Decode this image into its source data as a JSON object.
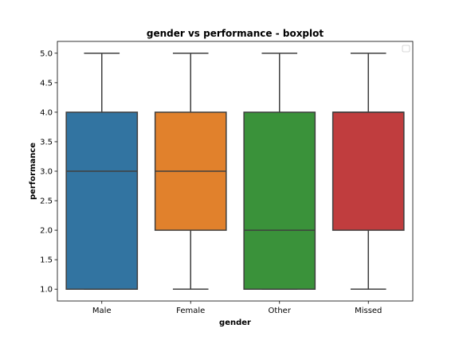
{
  "chart_data": {
    "type": "boxplot",
    "title": "gender vs performance - boxplot",
    "xlabel": "gender",
    "ylabel": "performance",
    "categories": [
      "Male",
      "Female",
      "Other",
      "Missed"
    ],
    "boxes": [
      {
        "category": "Male",
        "whisker_low": 1.0,
        "q1": 1.0,
        "median": 3.0,
        "q3": 4.0,
        "whisker_high": 5.0,
        "color": "#3274a1"
      },
      {
        "category": "Female",
        "whisker_low": 1.0,
        "q1": 2.0,
        "median": 3.0,
        "q3": 4.0,
        "whisker_high": 5.0,
        "color": "#e1812c"
      },
      {
        "category": "Other",
        "whisker_low": 1.0,
        "q1": 1.0,
        "median": 2.0,
        "q3": 4.0,
        "whisker_high": 5.0,
        "color": "#3a923a"
      },
      {
        "category": "Missed",
        "whisker_low": 1.0,
        "q1": 2.0,
        "median": 4.0,
        "q3": 4.0,
        "whisker_high": 5.0,
        "color": "#c03d3e"
      }
    ],
    "ylim": [
      0.8,
      5.2
    ],
    "yticks": [
      1.0,
      1.5,
      2.0,
      2.5,
      3.0,
      3.5,
      4.0,
      4.5,
      5.0
    ],
    "ytick_labels": [
      "1.0",
      "1.5",
      "2.0",
      "2.5",
      "3.0",
      "3.5",
      "4.0",
      "4.5",
      "5.0"
    ],
    "grid": false,
    "legend": {
      "placement": "top-right",
      "entries": []
    }
  }
}
